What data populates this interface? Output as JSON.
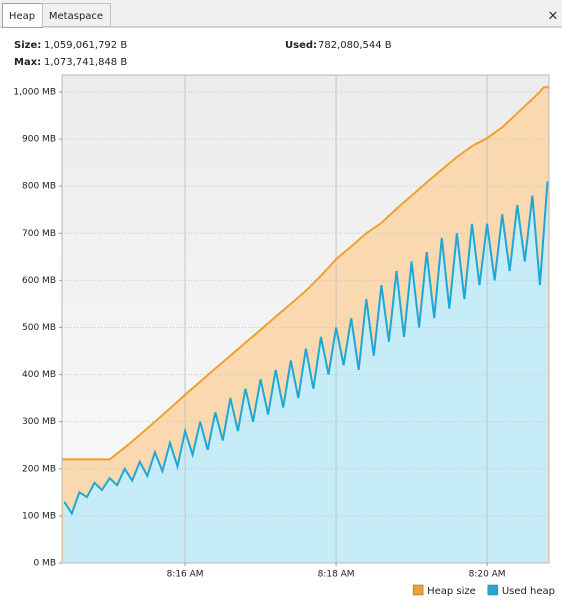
{
  "tabs": [
    "Heap",
    "Metaspace"
  ],
  "stats": {
    "size_label": "Size:",
    "size_value": "1,059,061,792 B",
    "used_label": "Used:",
    "used_value": "782,080,544 B",
    "max_label": "Max:",
    "max_value": "1,073,741,848 B"
  },
  "chart_data": {
    "type": "area",
    "series": [
      {
        "name": "Heap size",
        "color": "#f0a030",
        "fill": "#fbd9b0",
        "x": [
          14.37,
          15.0,
          15.2,
          15.4,
          15.6,
          15.8,
          16.0,
          16.2,
          16.4,
          16.6,
          16.8,
          17.0,
          17.2,
          17.4,
          17.6,
          17.8,
          18.0,
          18.2,
          18.4,
          18.6,
          18.8,
          19.0,
          19.2,
          19.4,
          19.6,
          19.8,
          20.0,
          20.2,
          20.4,
          20.6,
          20.7,
          20.75,
          20.82
        ],
        "values": [
          220,
          220,
          245,
          272,
          300,
          328,
          357,
          385,
          413,
          440,
          468,
          495,
          523,
          550,
          578,
          610,
          645,
          672,
          700,
          722,
          752,
          780,
          808,
          835,
          862,
          885,
          902,
          925,
          955,
          985,
          1000,
          1010,
          1010
        ]
      },
      {
        "name": "Used heap",
        "color": "#1fa7d6",
        "fill": "#c6ecf8",
        "x": [
          14.4,
          14.5,
          14.6,
          14.7,
          14.8,
          14.9,
          15.0,
          15.1,
          15.2,
          15.3,
          15.4,
          15.5,
          15.6,
          15.7,
          15.8,
          15.9,
          16.0,
          16.1,
          16.2,
          16.3,
          16.4,
          16.5,
          16.6,
          16.7,
          16.8,
          16.9,
          17.0,
          17.1,
          17.2,
          17.3,
          17.4,
          17.5,
          17.6,
          17.7,
          17.8,
          17.9,
          18.0,
          18.1,
          18.2,
          18.3,
          18.4,
          18.5,
          18.6,
          18.7,
          18.8,
          18.9,
          19.0,
          19.1,
          19.2,
          19.3,
          19.4,
          19.5,
          19.6,
          19.7,
          19.8,
          19.9,
          20.0,
          20.1,
          20.2,
          20.3,
          20.4,
          20.5,
          20.6,
          20.7,
          20.8
        ],
        "values": [
          130,
          105,
          150,
          140,
          170,
          155,
          180,
          165,
          200,
          175,
          215,
          185,
          235,
          195,
          255,
          205,
          280,
          230,
          300,
          240,
          320,
          260,
          350,
          280,
          370,
          300,
          390,
          315,
          410,
          330,
          430,
          350,
          455,
          370,
          480,
          400,
          500,
          420,
          520,
          410,
          560,
          440,
          590,
          470,
          620,
          480,
          640,
          500,
          660,
          520,
          690,
          540,
          700,
          560,
          720,
          590,
          720,
          600,
          740,
          620,
          760,
          640,
          780,
          590,
          810
        ]
      }
    ],
    "xlim": [
      14.37,
      20.82
    ],
    "xticks": [
      {
        "value": 16,
        "label": "8:16 AM"
      },
      {
        "value": 18,
        "label": "8:18 AM"
      },
      {
        "value": 20,
        "label": "8:20 AM"
      }
    ],
    "ylim": [
      0,
      1036
    ],
    "yticks": [
      {
        "value": 0,
        "label": "0 MB"
      },
      {
        "value": 100,
        "label": "100 MB"
      },
      {
        "value": 200,
        "label": "200 MB"
      },
      {
        "value": 300,
        "label": "300 MB"
      },
      {
        "value": 400,
        "label": "400 MB"
      },
      {
        "value": 500,
        "label": "500 MB"
      },
      {
        "value": 600,
        "label": "600 MB"
      },
      {
        "value": 700,
        "label": "700 MB"
      },
      {
        "value": 800,
        "label": "800 MB"
      },
      {
        "value": 900,
        "label": "900 MB"
      },
      {
        "value": 1000,
        "label": "1,000 MB"
      }
    ],
    "grid": true,
    "legend": "bottom-right"
  }
}
